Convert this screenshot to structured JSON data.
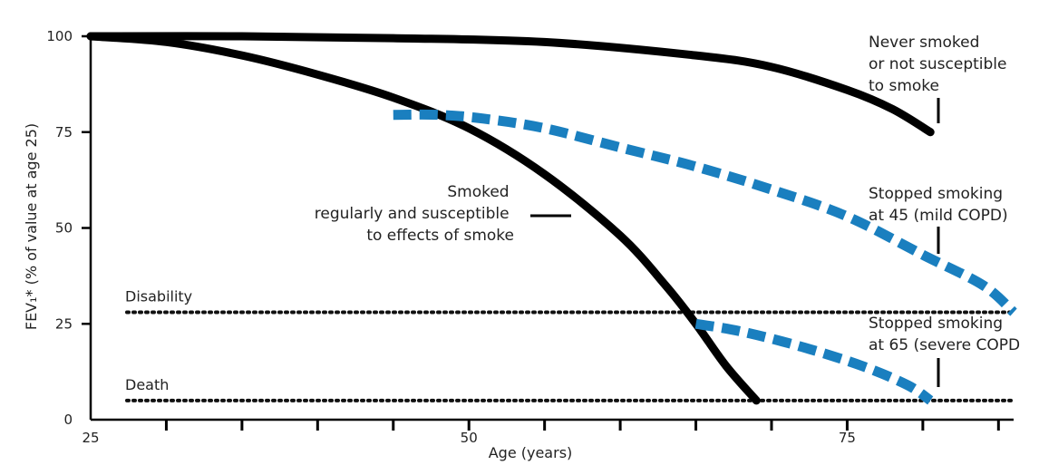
{
  "chart_data": {
    "type": "line",
    "xlabel": "Age (years)",
    "ylabel": "FEV₁* (% of value at age 25)",
    "xlim": [
      25,
      86
    ],
    "ylim": [
      0,
      100
    ],
    "x_ticks": [
      25,
      50,
      75
    ],
    "y_ticks": [
      0,
      25,
      50,
      75,
      100
    ],
    "grid": false,
    "series": [
      {
        "name": "Never smoked or not susceptible to smoke",
        "style": "solid",
        "color": "#000000",
        "x": [
          25,
          35,
          45,
          55,
          65,
          70,
          75,
          78,
          80.5
        ],
        "y": [
          100,
          100,
          99.5,
          98.5,
          95,
          92,
          86,
          81,
          75
        ]
      },
      {
        "name": "Smoked regularly and susceptible to effects of smoke",
        "style": "solid",
        "color": "#000000",
        "x": [
          25,
          30,
          35,
          40,
          45,
          50,
          55,
          60,
          63,
          65,
          67,
          69
        ],
        "y": [
          100,
          98.5,
          95,
          90,
          84,
          76,
          64,
          48,
          35,
          25,
          14,
          5
        ]
      },
      {
        "name": "Stopped smoking at 45 (mild COPD)",
        "style": "dashed",
        "color": "#1a7fbf",
        "x": [
          45,
          48,
          51,
          55,
          60,
          65,
          70,
          75,
          80,
          84,
          86
        ],
        "y": [
          79.5,
          79.5,
          78.5,
          76,
          71,
          66,
          60,
          53,
          43,
          35,
          28
        ]
      },
      {
        "name": "Stopped smoking at 65 (severe COPD)",
        "style": "dashed",
        "color": "#1a7fbf",
        "x": [
          65,
          68,
          72,
          76,
          79,
          80.5
        ],
        "y": [
          25,
          23,
          19,
          14,
          9,
          5
        ]
      }
    ],
    "reference_lines": [
      {
        "label": "Disability",
        "y": 28
      },
      {
        "label": "Death",
        "y": 5
      }
    ],
    "annotations": [
      {
        "lines": [
          "Never smoked",
          "or not susceptible",
          "to smoke"
        ]
      },
      {
        "lines": [
          "Smoked",
          "regularly and susceptible",
          "to effects of smoke"
        ]
      },
      {
        "lines": [
          "Stopped smoking",
          "at 45 (mild COPD)"
        ]
      },
      {
        "lines": [
          "Stopped smoking",
          "at 65 (severe COPD"
        ]
      }
    ]
  }
}
